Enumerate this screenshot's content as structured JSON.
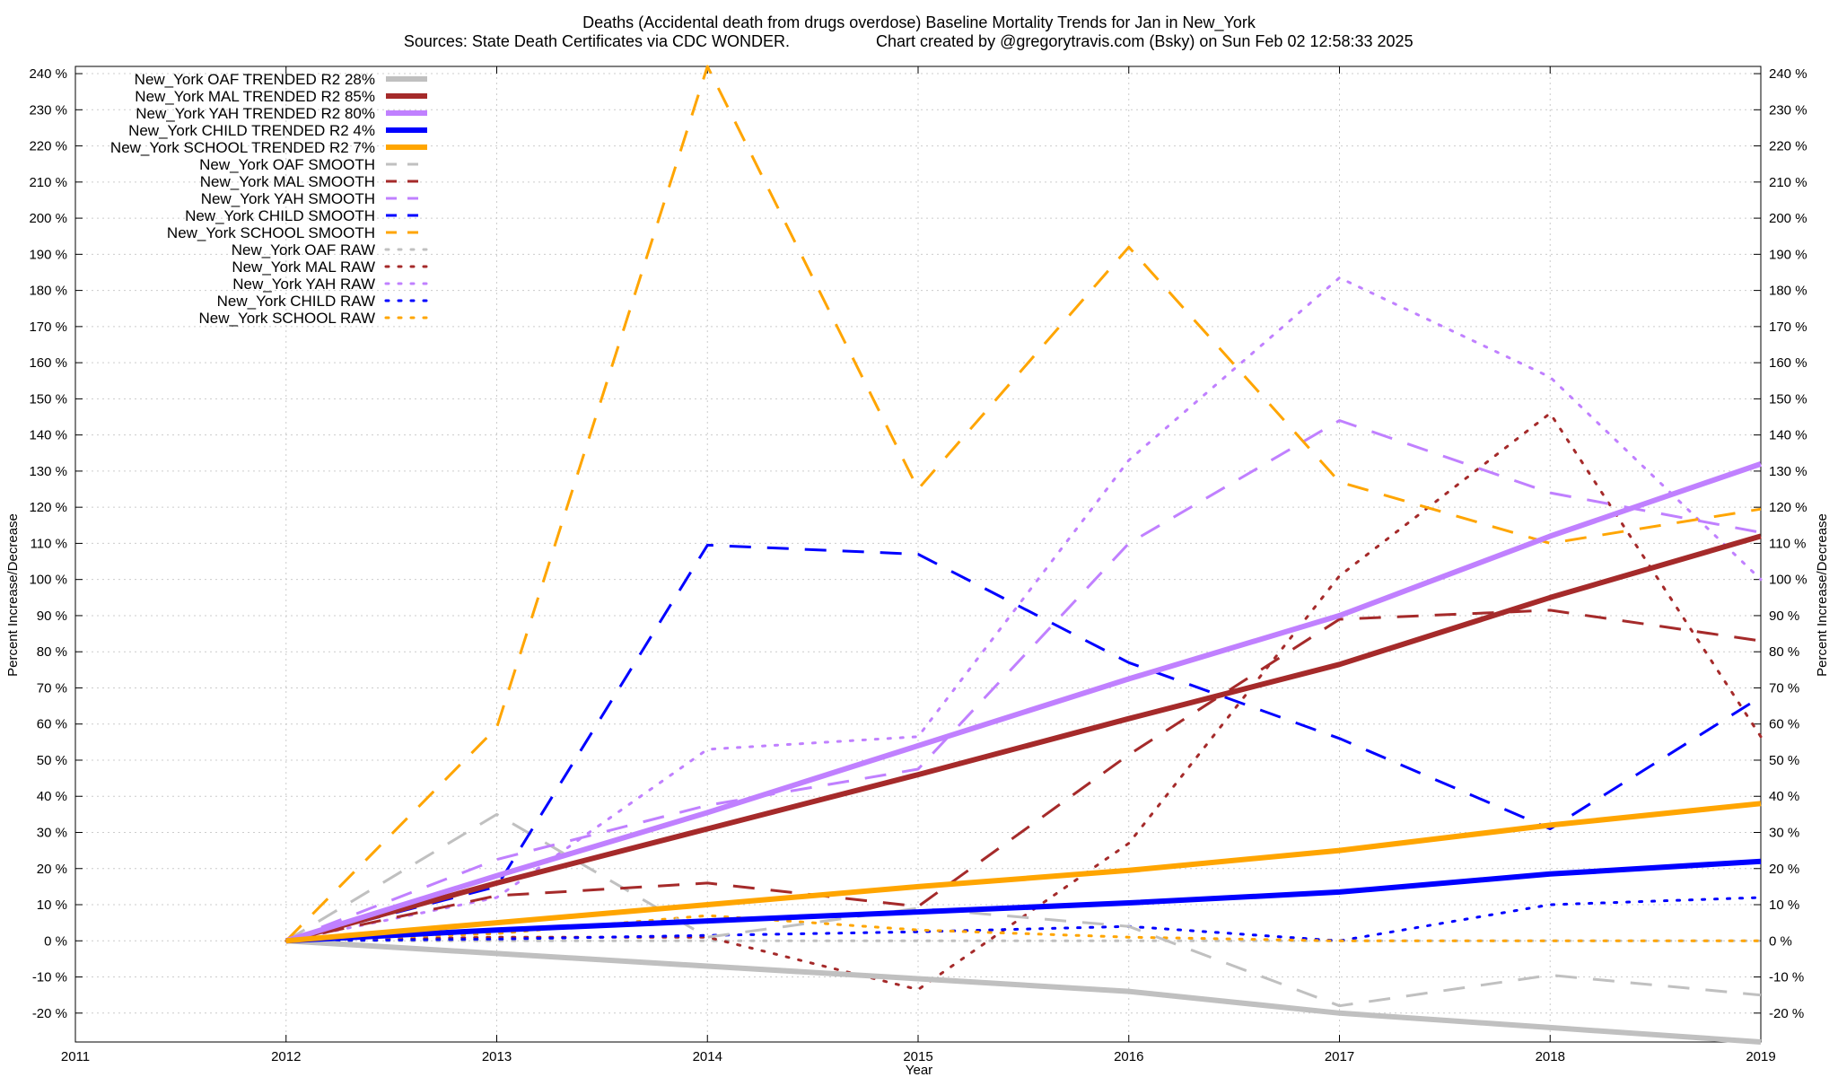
{
  "chart_data": {
    "type": "line",
    "title": "Deaths (Accidental death from drugs overdose)  Baseline Mortality Trends for Jan in New_York",
    "subtitle_left": "Sources: State Death Certificates via CDC WONDER.",
    "subtitle_right": "Chart created by @gregorytravis.com (Bsky) on Sun Feb 02 12:58:33 2025",
    "xlabel": "Year",
    "ylabel_left": "Percent Increase/Decrease",
    "ylabel_right": "Percent Increase/Decrease",
    "xlim": [
      2011,
      2019
    ],
    "ylim": [
      -28,
      242
    ],
    "x_ticks": [
      "2011",
      "2012",
      "2013",
      "2014",
      "2015",
      "2016",
      "2017",
      "2018",
      "2019"
    ],
    "y_ticks": [
      "-20 %",
      "-10 %",
      "0 %",
      "10 %",
      "20 %",
      "30 %",
      "40 %",
      "50 %",
      "60 %",
      "70 %",
      "80 %",
      "90 %",
      "100 %",
      "110 %",
      "120 %",
      "130 %",
      "140 %",
      "150 %",
      "160 %",
      "170 %",
      "180 %",
      "190 %",
      "200 %",
      "210 %",
      "220 %",
      "230 %",
      "240 %"
    ],
    "grid": true,
    "legend_position": "top-left",
    "x": [
      2012,
      2013,
      2014,
      2015,
      2016,
      2017,
      2018,
      2019
    ],
    "series": [
      {
        "name": "New_York OAF TRENDED R2  28%",
        "style": "solid",
        "color": "#c0c0c0",
        "values": [
          0,
          -3.5,
          -7,
          -10.5,
          -14,
          -20,
          -24,
          -28
        ]
      },
      {
        "name": "New_York MAL TRENDED R2  85%",
        "style": "solid",
        "color": "#a52a2a",
        "values": [
          0,
          16,
          31,
          46,
          61.5,
          76.5,
          95,
          112
        ]
      },
      {
        "name": "New_York YAH TRENDED R2  80%",
        "style": "solid",
        "color": "#c080ff",
        "values": [
          0,
          18,
          35.5,
          54,
          72.5,
          90,
          112,
          132
        ]
      },
      {
        "name": "New_York CHILD TRENDED R2  4%",
        "style": "solid",
        "color": "#0000ff",
        "values": [
          0,
          3,
          5.5,
          8,
          10.5,
          13.5,
          18.5,
          22
        ]
      },
      {
        "name": "New_York SCHOOL TRENDED R2  7%",
        "style": "solid",
        "color": "#ffa500",
        "values": [
          0,
          5,
          10,
          15,
          19.5,
          25,
          32,
          38
        ]
      },
      {
        "name": "New_York OAF SMOOTH",
        "style": "dashed",
        "color": "#c0c0c0",
        "values": [
          0,
          35,
          1,
          9,
          4,
          -18,
          -9.5,
          -15
        ]
      },
      {
        "name": "New_York MAL SMOOTH",
        "style": "dashed",
        "color": "#a52a2a",
        "values": [
          0,
          12.5,
          16,
          9.5,
          51.5,
          89,
          91.5,
          83
        ]
      },
      {
        "name": "New_York YAH SMOOTH",
        "style": "dashed",
        "color": "#c080ff",
        "values": [
          0,
          22.5,
          37.5,
          47.5,
          110,
          144,
          124,
          113
        ]
      },
      {
        "name": "New_York CHILD SMOOTH",
        "style": "dashed",
        "color": "#0000ff",
        "values": [
          0,
          15,
          109.5,
          107,
          77,
          56,
          31,
          67.5
        ]
      },
      {
        "name": "New_York SCHOOL SMOOTH",
        "style": "dashed",
        "color": "#ffa500",
        "values": [
          0,
          59,
          242,
          125,
          192,
          127,
          110,
          119.5
        ]
      },
      {
        "name": "New_York OAF RAW",
        "style": "dotted",
        "color": "#c0c0c0",
        "values": [
          0,
          0,
          0,
          0,
          0,
          0,
          0,
          0
        ]
      },
      {
        "name": "New_York MAL RAW",
        "style": "dotted",
        "color": "#a52a2a",
        "values": [
          0,
          1,
          1,
          -13.5,
          27,
          101,
          146,
          56.5
        ]
      },
      {
        "name": "New_York YAH RAW",
        "style": "dotted",
        "color": "#c080ff",
        "values": [
          0,
          12,
          53,
          56.5,
          133,
          183.5,
          156,
          100
        ]
      },
      {
        "name": "New_York CHILD RAW",
        "style": "dotted",
        "color": "#0000ff",
        "values": [
          0,
          0.5,
          1.5,
          2.5,
          4,
          0,
          10,
          12
        ]
      },
      {
        "name": "New_York SCHOOL RAW",
        "style": "dotted",
        "color": "#ffa500",
        "values": [
          0,
          2,
          7,
          3,
          1,
          0,
          0,
          0
        ]
      }
    ]
  }
}
